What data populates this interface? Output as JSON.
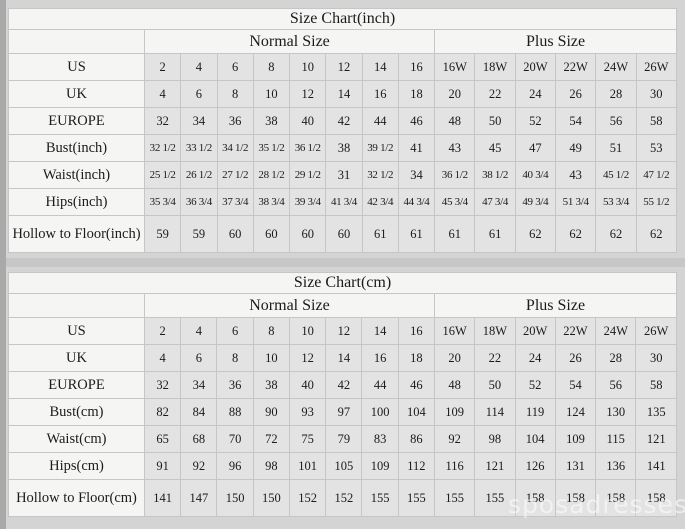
{
  "watermark": "sposadresses",
  "chart_data": [
    {
      "type": "table",
      "title": "Size Chart(inch)",
      "column_groups": [
        {
          "label": "Normal Size",
          "span": 8
        },
        {
          "label": "Plus Size",
          "span": 6
        }
      ],
      "rows": [
        {
          "label": "US",
          "values": [
            "2",
            "4",
            "6",
            "8",
            "10",
            "12",
            "14",
            "16",
            "16W",
            "18W",
            "20W",
            "22W",
            "24W",
            "26W"
          ]
        },
        {
          "label": "UK",
          "values": [
            "4",
            "6",
            "8",
            "10",
            "12",
            "14",
            "16",
            "18",
            "20",
            "22",
            "24",
            "26",
            "28",
            "30"
          ]
        },
        {
          "label": "EUROPE",
          "values": [
            "32",
            "34",
            "36",
            "38",
            "40",
            "42",
            "44",
            "46",
            "48",
            "50",
            "52",
            "54",
            "56",
            "58"
          ]
        },
        {
          "label": "Bust(inch)",
          "values": [
            "32 1/2",
            "33 1/2",
            "34 1/2",
            "35 1/2",
            "36 1/2",
            "38",
            "39 1/2",
            "41",
            "43",
            "45",
            "47",
            "49",
            "51",
            "53"
          ]
        },
        {
          "label": "Waist(inch)",
          "values": [
            "25 1/2",
            "26 1/2",
            "27 1/2",
            "28 1/2",
            "29 1/2",
            "31",
            "32 1/2",
            "34",
            "36 1/2",
            "38 1/2",
            "40 3/4",
            "43",
            "45 1/2",
            "47 1/2"
          ]
        },
        {
          "label": "Hips(inch)",
          "values": [
            "35 3/4",
            "36 3/4",
            "37 3/4",
            "38 3/4",
            "39 3/4",
            "41 3/4",
            "42 3/4",
            "44 3/4",
            "45 3/4",
            "47 3/4",
            "49 3/4",
            "51 3/4",
            "53 3/4",
            "55 1/2"
          ]
        },
        {
          "label": "Hollow to Floor(inch)",
          "values": [
            "59",
            "59",
            "60",
            "60",
            "60",
            "60",
            "61",
            "61",
            "61",
            "61",
            "62",
            "62",
            "62",
            "62"
          ]
        }
      ]
    },
    {
      "type": "table",
      "title": "Size Chart(cm)",
      "column_groups": [
        {
          "label": "Normal Size",
          "span": 8
        },
        {
          "label": "Plus Size",
          "span": 6
        }
      ],
      "rows": [
        {
          "label": "US",
          "values": [
            "2",
            "4",
            "6",
            "8",
            "10",
            "12",
            "14",
            "16",
            "16W",
            "18W",
            "20W",
            "22W",
            "24W",
            "26W"
          ]
        },
        {
          "label": "UK",
          "values": [
            "4",
            "6",
            "8",
            "10",
            "12",
            "14",
            "16",
            "18",
            "20",
            "22",
            "24",
            "26",
            "28",
            "30"
          ]
        },
        {
          "label": "EUROPE",
          "values": [
            "32",
            "34",
            "36",
            "38",
            "40",
            "42",
            "44",
            "46",
            "48",
            "50",
            "52",
            "54",
            "56",
            "58"
          ]
        },
        {
          "label": "Bust(cm)",
          "values": [
            "82",
            "84",
            "88",
            "90",
            "93",
            "97",
            "100",
            "104",
            "109",
            "114",
            "119",
            "124",
            "130",
            "135"
          ]
        },
        {
          "label": "Waist(cm)",
          "values": [
            "65",
            "68",
            "70",
            "72",
            "75",
            "79",
            "83",
            "86",
            "92",
            "98",
            "104",
            "109",
            "115",
            "121"
          ]
        },
        {
          "label": "Hips(cm)",
          "values": [
            "91",
            "92",
            "96",
            "98",
            "101",
            "105",
            "109",
            "112",
            "116",
            "121",
            "126",
            "131",
            "136",
            "141"
          ]
        },
        {
          "label": "Hollow to Floor(cm)",
          "values": [
            "141",
            "147",
            "150",
            "150",
            "152",
            "152",
            "155",
            "155",
            "155",
            "155",
            "158",
            "158",
            "158",
            "158"
          ]
        }
      ]
    }
  ],
  "colors": {
    "page_background": "#d4d4d4",
    "left_strip": "#a9a9a9",
    "cell_border": "#c6c6c6",
    "header_cell_background": "#f5f5f4",
    "data_cell_background": "#e3e3e3",
    "text": "#1b1b1b",
    "watermark_text": "rgba(255,255,255,0.55)"
  }
}
